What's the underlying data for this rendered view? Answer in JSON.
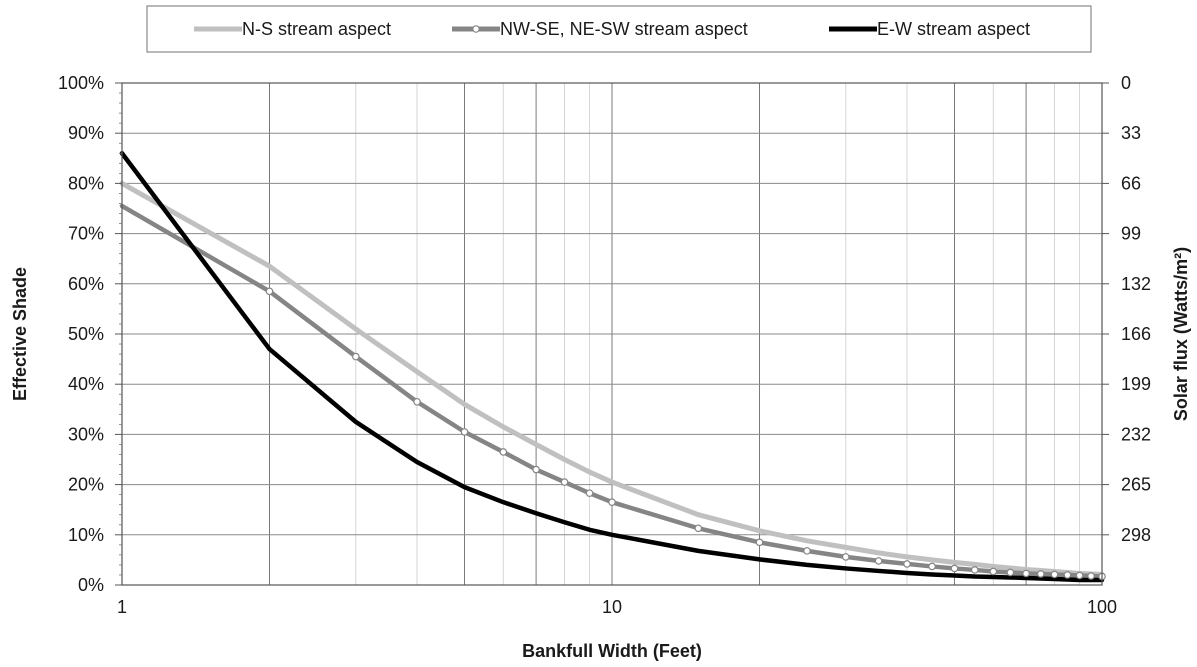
{
  "chart_data": {
    "type": "line",
    "xlabel": "Bankfull Width (Feet)",
    "ylabel": "Effective Shade",
    "y2label": "Solar flux (Watts/m²)",
    "x_scale": "log",
    "xlim": [
      1,
      100
    ],
    "ylim": [
      0,
      100
    ],
    "x_ticks": [
      "1",
      "10",
      "100"
    ],
    "y_ticks": [
      "0%",
      "10%",
      "20%",
      "30%",
      "40%",
      "50%",
      "60%",
      "70%",
      "80%",
      "90%",
      "100%"
    ],
    "y2_ticks": [
      "298",
      "265",
      "232",
      "199",
      "166",
      "132",
      "99",
      "66",
      "33",
      "0"
    ],
    "grid": true,
    "legend_position": "top",
    "x": [
      1,
      2,
      3,
      4,
      5,
      6,
      7,
      8,
      9,
      10,
      15,
      20,
      25,
      30,
      35,
      40,
      45,
      50,
      55,
      60,
      65,
      70,
      75,
      80,
      85,
      90,
      95,
      100
    ],
    "series": [
      {
        "name": "N-S stream aspect",
        "color": "#c0c0c0",
        "marker": "none",
        "values": [
          80,
          63.5,
          51,
          42.5,
          36,
          31.5,
          28,
          25,
          22.5,
          20.5,
          14,
          10.8,
          8.8,
          7.5,
          6.4,
          5.6,
          5,
          4.5,
          4.1,
          3.7,
          3.4,
          3.1,
          2.9,
          2.7,
          2.5,
          2.3,
          2.2,
          2.1
        ]
      },
      {
        "name": "NW-SE, NE-SW stream aspect",
        "color": "#858585",
        "marker": "circle",
        "values": [
          75.5,
          58.5,
          45.5,
          36.5,
          30.5,
          26.5,
          23,
          20.5,
          18.3,
          16.5,
          11.3,
          8.5,
          6.8,
          5.6,
          4.8,
          4.2,
          3.7,
          3.3,
          3,
          2.7,
          2.5,
          2.3,
          2.2,
          2.1,
          2,
          1.9,
          1.8,
          1.7
        ]
      },
      {
        "name": "E-W stream aspect",
        "color": "#000000",
        "marker": "none",
        "values": [
          86,
          47,
          32.5,
          24.5,
          19.5,
          16.5,
          14.3,
          12.5,
          11,
          10,
          6.8,
          5.1,
          4,
          3.3,
          2.8,
          2.4,
          2.1,
          1.9,
          1.7,
          1.6,
          1.5,
          1.4,
          1.3,
          1.2,
          1.1,
          1,
          1,
          1
        ]
      }
    ]
  }
}
